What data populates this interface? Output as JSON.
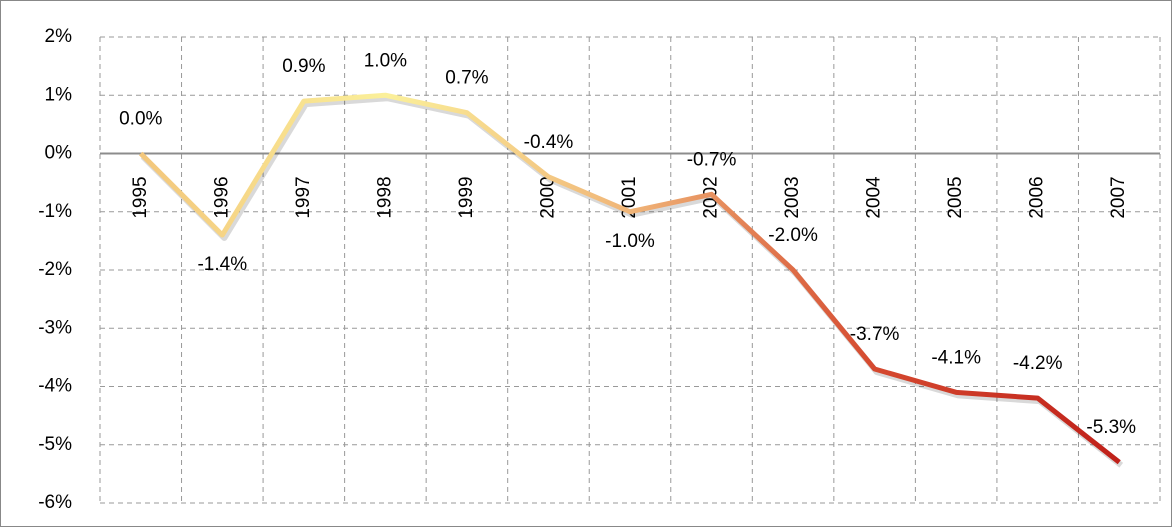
{
  "chart_data": {
    "type": "line",
    "categories": [
      "1995",
      "1996",
      "1997",
      "1998",
      "1999",
      "2000",
      "2001",
      "2002",
      "2003",
      "2004",
      "2005",
      "2006",
      "2007"
    ],
    "values": [
      0.0,
      -1.4,
      0.9,
      1.0,
      0.7,
      -0.4,
      -1.0,
      -0.7,
      -2.0,
      -3.7,
      -4.1,
      -4.2,
      -5.3
    ],
    "value_labels": [
      "0.0%",
      "-1.4%",
      "0.9%",
      "1.0%",
      "0.7%",
      "-0.4%",
      "-1.0%",
      "-0.7%",
      "-2.0%",
      "-3.7%",
      "-4.1%",
      "-4.2%",
      "-5.3%"
    ],
    "gradient_colors": [
      "#f3c77c",
      "#fbf09a",
      "#f0b578",
      "#d5492f",
      "#c0211a"
    ],
    "ylim": [
      -6,
      2
    ],
    "yticks": [
      {
        "value": -6,
        "label": "-6%"
      },
      {
        "value": -5,
        "label": "-5%"
      },
      {
        "value": -4,
        "label": "-4%"
      },
      {
        "value": -3,
        "label": "-3%"
      },
      {
        "value": -2,
        "label": "-2%"
      },
      {
        "value": -1,
        "label": "-1%"
      },
      {
        "value": 0,
        "label": "0%"
      },
      {
        "value": 1,
        "label": "1%"
      },
      {
        "value": 2,
        "label": "2%"
      }
    ],
    "grid": true
  }
}
